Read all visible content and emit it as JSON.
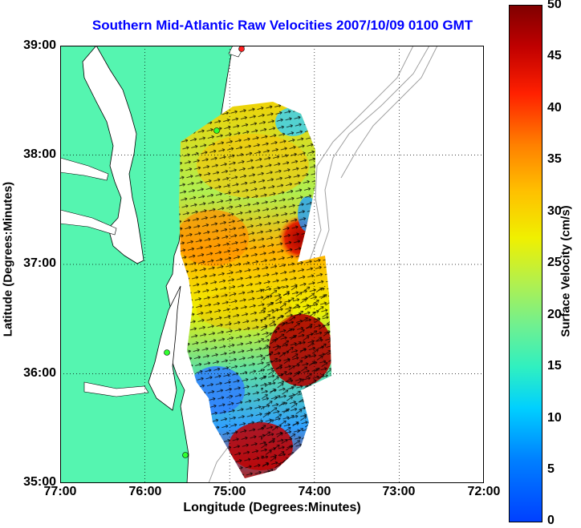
{
  "title": "Southern Mid-Atlantic Raw Velocities 2007/10/09 0100 GMT",
  "xlabel": "Longitude (Degrees:Minutes)",
  "ylabel": "Latitude (Degrees:Minutes)",
  "xticks": [
    "77:00",
    "76:00",
    "75:00",
    "74:00",
    "73:00",
    "72:00"
  ],
  "yticks": [
    "39:00",
    "38:00",
    "37:00",
    "36:00",
    "35:00"
  ],
  "colorbar": {
    "label": "Surface Velocity (cm/s)",
    "ticks": [
      "50",
      "45",
      "40",
      "35",
      "30",
      "25",
      "20",
      "15",
      "10",
      "5",
      "0"
    ],
    "colors": [
      "#0040ff",
      "#00d0ff",
      "#70f090",
      "#f0f000",
      "#ff8000",
      "#800000"
    ]
  },
  "map": {
    "land_color": "#55f5b0",
    "coastline_color": "#000000",
    "contour_color": "#a0a0a0",
    "grid": "dotted",
    "arrow_color": "#000000"
  }
}
